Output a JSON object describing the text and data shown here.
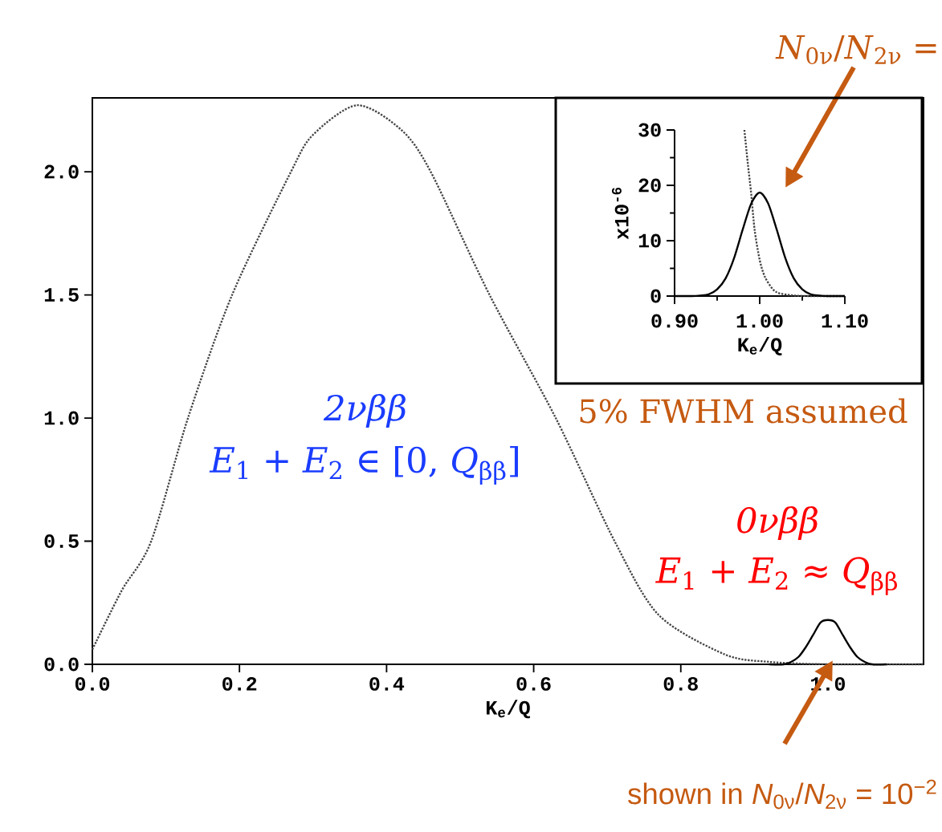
{
  "chart_data": [
    {
      "type": "line",
      "xlabel": "K$_{e}$/Q",
      "xlim": [
        0,
        1.13
      ],
      "ylim": [
        0,
        2.3
      ],
      "xticks": [
        {
          "value": 0,
          "label": "0.0"
        },
        {
          "value": 0.2,
          "label": "0.2"
        },
        {
          "value": 0.4,
          "label": "0.4"
        },
        {
          "value": 0.6,
          "label": "0.6"
        },
        {
          "value": 0.8,
          "label": "0.8"
        },
        {
          "value": 1,
          "label": "1.0"
        }
      ],
      "yticks": [
        {
          "value": 0,
          "label": "0.0"
        },
        {
          "value": 0.5,
          "label": "0.5"
        },
        {
          "value": 1,
          "label": "1.0"
        },
        {
          "value": 1.5,
          "label": "1.5"
        },
        {
          "value": 2,
          "label": "2.0"
        }
      ],
      "series": [
        {
          "color": "#444444",
          "line_style": "dotted",
          "x": [
            0,
            0.04,
            0.08,
            0.13,
            0.19,
            0.27,
            0.3,
            0.36,
            0.42,
            0.46,
            0.54,
            0.63,
            0.71,
            0.77,
            0.86,
            0.92,
            1.0,
            1.13
          ],
          "values": [
            0.06,
            0.3,
            0.5,
            1.0,
            1.5,
            2.0,
            2.15,
            2.27,
            2.17,
            2.0,
            1.5,
            1.0,
            0.5,
            0.2,
            0.04,
            0.01,
            0,
            0
          ]
        },
        {
          "color": "#000000",
          "line_style": "solid",
          "x": [
            0.92,
            0.94,
            0.95,
            0.96,
            0.97,
            0.98,
            0.99,
            1.0,
            1.01,
            1.02,
            1.03,
            1.04,
            1.05,
            1.06,
            1.08
          ],
          "values": [
            0,
            0,
            0.01,
            0.03,
            0.07,
            0.12,
            0.17,
            0.18,
            0.17,
            0.12,
            0.07,
            0.03,
            0.01,
            0,
            0
          ]
        }
      ],
      "annotations": [
        "2νββ",
        "*E*$_{1}$ + *E*$_{2}$ ∈ [0, *Q*$_{ββ}$]",
        "0νββ",
        "*E*$_{1}$ + *E*$_{2}$ ≈ *Q*$_{ββ}$",
        "shown in *N*$_{0ν}$/*N*$_{2ν}$ = 10$^{−2}$"
      ]
    },
    {
      "type": "line",
      "xlabel": "K$_{e}$/Q",
      "ylabel": "x10$^{-6}$",
      "xlim": [
        0.9,
        1.1
      ],
      "ylim": [
        0,
        30
      ],
      "xticks": [
        {
          "value": 0.9,
          "label": "0.90"
        },
        {
          "value": 0.95,
          "label": null
        },
        {
          "value": 1.0,
          "label": "1.00"
        },
        {
          "value": 1.05,
          "label": null
        },
        {
          "value": 1.1,
          "label": "1.10"
        }
      ],
      "yticks": [
        0,
        {
          "value": 5,
          "label": null
        },
        10,
        {
          "value": 15,
          "label": null
        },
        20,
        {
          "value": 25,
          "label": null
        },
        30
      ],
      "series": [
        {
          "color": "#444444",
          "line_style": "dotted",
          "x": [
            0.982,
            0.986,
            0.99,
            0.994,
            1.0,
            1.006,
            1.015,
            1.023,
            1.04,
            1.06,
            1.1
          ],
          "values": [
            30,
            24,
            18.5,
            12,
            6.5,
            3.5,
            1.3,
            0.5,
            0.1,
            0,
            0
          ]
        },
        {
          "color": "#000000",
          "line_style": "solid",
          "x": [
            0.9,
            0.91,
            0.92,
            0.93,
            0.94,
            0.95,
            0.96,
            0.97,
            0.98,
            0.99,
            1.0,
            1.01,
            1.02,
            1.03,
            1.04,
            1.05,
            1.06,
            1.07,
            1.08,
            1.09,
            1.1
          ],
          "values": [
            0,
            0,
            0,
            0.1,
            0.3,
            1.2,
            3.2,
            6.9,
            12.0,
            16.7,
            18.7,
            16.7,
            12.0,
            6.9,
            3.2,
            1.2,
            0.3,
            0.1,
            0,
            0,
            0
          ]
        }
      ],
      "annotations": [
        "5% FWHM assumed",
        "*N*$_{0ν}$/*N*$_{2ν}$ ="
      ]
    }
  ]
}
